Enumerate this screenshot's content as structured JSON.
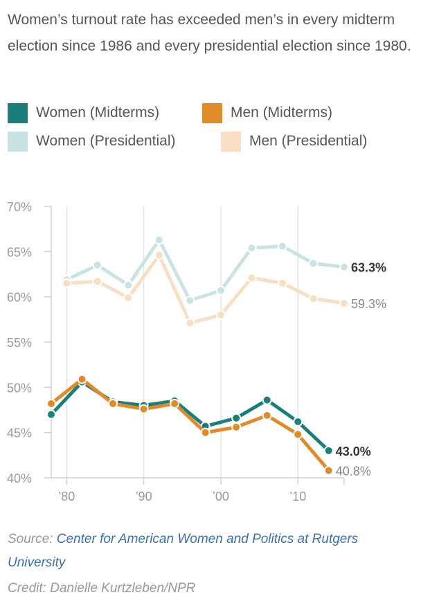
{
  "title": "Women’s turnout rate has exceeded men’s in every midterm election since 1986 and every presidential election since 1980.",
  "legend": [
    {
      "label": "Women (Midterms)",
      "color": "#1a7f7a"
    },
    {
      "label": "Men (Midterms)",
      "color": "#e08a2a"
    },
    {
      "label": "Women (Presidential)",
      "color": "#c9e3e3"
    },
    {
      "label": "Men (Presidential)",
      "color": "#f8dfc4"
    }
  ],
  "source": {
    "prefix": "Source: ",
    "link_text": "Center for American Women and Politics at Rutgers University"
  },
  "credit": "Credit: Danielle Kurtzleben/NPR",
  "chart_data": {
    "type": "line",
    "xlabel": "",
    "ylabel": "",
    "xlim": [
      1978,
      2016
    ],
    "ylim": [
      40,
      70
    ],
    "y_ticks": [
      40,
      45,
      50,
      55,
      60,
      65,
      70
    ],
    "y_tick_labels": [
      "40%",
      "45%",
      "50%",
      "55%",
      "60%",
      "65%",
      "70%"
    ],
    "x_ticks": [
      1980,
      1990,
      2000,
      2010
    ],
    "x_tick_labels": [
      "’80",
      "’90",
      "’00",
      "’10"
    ],
    "grid": "vertical",
    "series": [
      {
        "name": "Women (Presidential)",
        "color": "#c9e3e3",
        "x": [
          1980,
          1984,
          1988,
          1992,
          1996,
          2000,
          2004,
          2008,
          2012,
          2016
        ],
        "y": [
          61.9,
          63.5,
          61.3,
          66.3,
          59.6,
          60.7,
          65.4,
          65.6,
          63.7,
          63.3
        ],
        "end_label": "63.3%",
        "end_bold": true
      },
      {
        "name": "Men (Presidential)",
        "color": "#f8dfc4",
        "x": [
          1980,
          1984,
          1988,
          1992,
          1996,
          2000,
          2004,
          2008,
          2012,
          2016
        ],
        "y": [
          61.5,
          61.7,
          59.9,
          64.6,
          57.1,
          58.0,
          62.1,
          61.5,
          59.8,
          59.3
        ],
        "end_label": "59.3%",
        "end_bold": false
      },
      {
        "name": "Women (Midterms)",
        "color": "#1a7f7a",
        "x": [
          1978,
          1982,
          1986,
          1990,
          1994,
          1998,
          2002,
          2006,
          2010,
          2014
        ],
        "y": [
          47.0,
          50.6,
          48.4,
          48.0,
          48.5,
          45.7,
          46.6,
          48.6,
          46.2,
          43.0
        ],
        "end_label": "43.0%",
        "end_bold": true
      },
      {
        "name": "Men (Midterms)",
        "color": "#e08a2a",
        "x": [
          1978,
          1982,
          1986,
          1990,
          1994,
          1998,
          2002,
          2006,
          2010,
          2014
        ],
        "y": [
          48.2,
          50.9,
          48.2,
          47.6,
          48.2,
          45.0,
          45.6,
          46.9,
          44.8,
          40.8
        ],
        "end_label": "40.8%",
        "end_bold": false
      }
    ]
  }
}
